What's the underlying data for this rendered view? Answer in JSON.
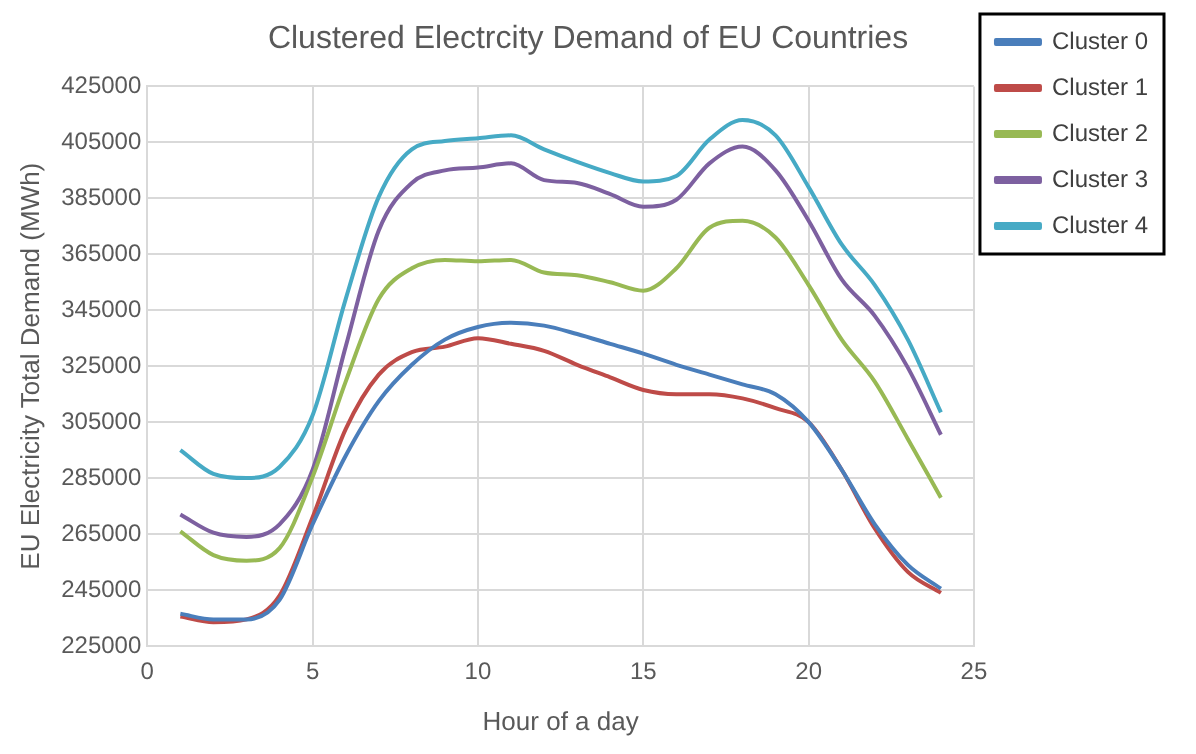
{
  "chart_data": {
    "type": "line",
    "title": "Clustered Electrcity Demand of EU Countries",
    "xlabel": "Hour of a day",
    "ylabel": "EU Electricity Total Demand (MWh)",
    "x": [
      1,
      2,
      3,
      4,
      5,
      6,
      7,
      8,
      9,
      10,
      11,
      12,
      13,
      14,
      15,
      16,
      17,
      18,
      19,
      20,
      21,
      22,
      23,
      24
    ],
    "xlim": [
      0,
      25
    ],
    "xticks": [
      0,
      5,
      10,
      15,
      20,
      25
    ],
    "ylim": [
      225000,
      425000
    ],
    "yticks": [
      225000,
      245000,
      265000,
      285000,
      305000,
      325000,
      345000,
      365000,
      385000,
      405000,
      425000
    ],
    "grid": true,
    "legend": "right",
    "marker": "none",
    "line_style": "solid",
    "series": [
      {
        "name": "Cluster 0",
        "color": "#4a7ebb",
        "values": [
          236500,
          234500,
          234500,
          241500,
          268500,
          293000,
          312500,
          325500,
          334500,
          339000,
          340500,
          339500,
          336500,
          333000,
          329500,
          325500,
          322000,
          318500,
          315000,
          305000,
          288000,
          268500,
          254000,
          245500
        ]
      },
      {
        "name": "Cluster 1",
        "color": "#be4b48",
        "values": [
          235500,
          233500,
          234500,
          243000,
          271000,
          302500,
          322000,
          330000,
          332000,
          335000,
          333000,
          330500,
          325500,
          321000,
          316500,
          315000,
          315000,
          313500,
          310000,
          305000,
          288000,
          267000,
          251500,
          244000
        ]
      },
      {
        "name": "Cluster 2",
        "color": "#98b954",
        "values": [
          266000,
          257500,
          255500,
          260000,
          285500,
          319500,
          349000,
          360000,
          363000,
          362500,
          363000,
          358500,
          357500,
          355000,
          352000,
          360000,
          374500,
          377000,
          371000,
          354000,
          334500,
          319500,
          299000,
          278000
        ]
      },
      {
        "name": "Cluster 3",
        "color": "#7d60a0",
        "values": [
          272000,
          265500,
          264000,
          268500,
          288000,
          332000,
          373500,
          390500,
          395000,
          396000,
          397500,
          391500,
          390500,
          386500,
          382000,
          384500,
          397500,
          403500,
          395000,
          377000,
          356000,
          343000,
          324500,
          300500
        ]
      },
      {
        "name": "Cluster 4",
        "color": "#46aac5",
        "values": [
          295000,
          286500,
          285000,
          289000,
          307500,
          349000,
          385500,
          402500,
          405500,
          406500,
          407500,
          402500,
          398000,
          394000,
          391000,
          393000,
          406000,
          413000,
          407500,
          389000,
          368500,
          354000,
          334500,
          308500
        ]
      }
    ]
  }
}
